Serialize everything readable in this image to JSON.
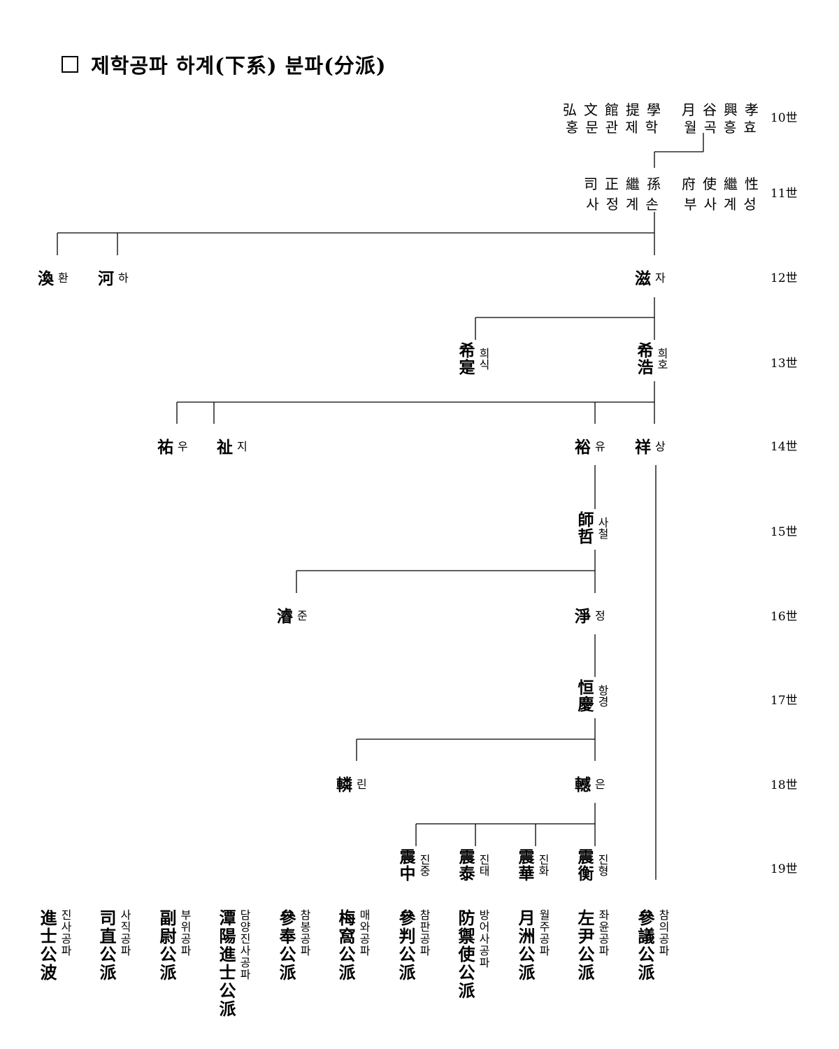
{
  "title": "제학공파 하계(下系) 분파(分派)",
  "generations": [
    "10世",
    "11世",
    "12世",
    "13世",
    "14世",
    "15世",
    "16世",
    "17世",
    "18世",
    "19世"
  ],
  "gen10": {
    "left_hanja": "弘文館提學",
    "left_hangul": "홍문관제학",
    "right_hanja": "月谷興孝",
    "right_hangul": "월곡흥효"
  },
  "gen11": {
    "left_hanja": "司正繼孫",
    "left_hangul": "사정계손",
    "right_hanja": "府使繼性",
    "right_hangul": "부사계성"
  },
  "persons": {
    "hwan": {
      "hanja": "渙",
      "hangul": "환"
    },
    "ha": {
      "hanja": "河",
      "hangul": "하"
    },
    "ja": {
      "hanja": "滋",
      "hangul": "자"
    },
    "huisik": {
      "hanja": "希寔",
      "hangul": "희식"
    },
    "huiho": {
      "hanja": "希浩",
      "hangul": "희호"
    },
    "u": {
      "hanja": "祐",
      "hangul": "우"
    },
    "ji": {
      "hanja": "祉",
      "hangul": "지"
    },
    "yu": {
      "hanja": "裕",
      "hangul": "유"
    },
    "sang": {
      "hanja": "祥",
      "hangul": "상"
    },
    "sacheol": {
      "hanja": "師哲",
      "hangul": "사철"
    },
    "jun": {
      "hanja": "濬",
      "hangul": "준"
    },
    "jeong": {
      "hanja": "淨",
      "hangul": "정"
    },
    "hanggyeong": {
      "hanja": "恒慶",
      "hangul": "항경"
    },
    "rin": {
      "hanja": "轔",
      "hangul": "린"
    },
    "eun": {
      "hanja": "轗",
      "hangul": "은"
    },
    "jinjung": {
      "hanja": "震中",
      "hangul": "진중"
    },
    "jintae": {
      "hanja": "震泰",
      "hangul": "진태"
    },
    "jinhwa": {
      "hanja": "震華",
      "hangul": "진화"
    },
    "jinhyeong": {
      "hanja": "震衡",
      "hangul": "진형"
    }
  },
  "sects": [
    {
      "hanja": "進士公波",
      "hangul": "진사공파"
    },
    {
      "hanja": "司直公派",
      "hangul": "사직공파"
    },
    {
      "hanja": "副尉公派",
      "hangul": "부위공파"
    },
    {
      "hanja": "潭陽進士公派",
      "hangul": "담양진사공파"
    },
    {
      "hanja": "參奉公派",
      "hangul": "참봉공파"
    },
    {
      "hanja": "梅窩公派",
      "hangul": "매와공파"
    },
    {
      "hanja": "參判公派",
      "hangul": "참판공파"
    },
    {
      "hanja": "防禦使公派",
      "hangul": "방어사공파"
    },
    {
      "hanja": "月洲公派",
      "hangul": "월주공파"
    },
    {
      "hanja": "左尹公派",
      "hangul": "좌윤공파"
    },
    {
      "hanja": "參議公派",
      "hangul": "참의공파"
    }
  ]
}
